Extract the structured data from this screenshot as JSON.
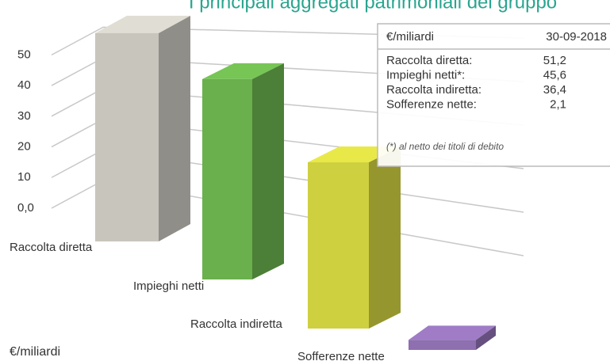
{
  "chart_data": {
    "type": "bar3d",
    "title": "I principali aggregati patrimoniali del gruppo",
    "unit_label": "€/miliardi",
    "categories": [
      "Raccolta diretta",
      "Impieghi netti",
      "Raccolta indiretta",
      "Sofferenze nette"
    ],
    "values": [
      51.2,
      45.6,
      36.4,
      2.1
    ],
    "value_labels": [
      "51,2",
      "45,6",
      "36,4",
      "2,1"
    ],
    "colors": [
      "#c8c5bd",
      "#6ab04c",
      "#cfd040",
      "#8e6fb0"
    ],
    "ylim": [
      0,
      55
    ],
    "yticks": [
      {
        "value": 0,
        "label": "0,0"
      },
      10,
      20,
      30,
      40,
      50
    ],
    "grid": true
  },
  "table": {
    "header": [
      "€/miliardi",
      "30-09-2018"
    ],
    "rows": [
      "Raccolta diretta:",
      "Impieghi netti*:",
      "Raccolta indiretta:",
      "Sofferenze nette:"
    ],
    "note": "(*) al netto dei titoli di debito"
  }
}
